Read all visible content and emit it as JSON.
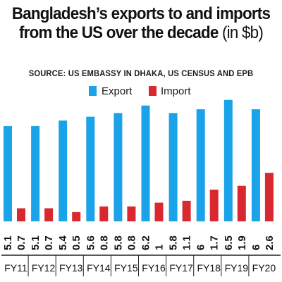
{
  "title_line1": "Bangladesh’s exports to and imports",
  "title_line2_main": "from the US over the decade",
  "title_line2_unit": " (in $b)",
  "source": "SOURCE: US EMBASSY IN DHAKA, US CENSUS AND EPB",
  "colors": {
    "export": "#1aa3e8",
    "import": "#d9282f",
    "axis": "#222222"
  },
  "chart_data": {
    "type": "bar",
    "categories": [
      "FY11",
      "FY12",
      "FY13",
      "FY14",
      "FY15",
      "FY16",
      "FY17",
      "FY18",
      "FY19",
      "FY20"
    ],
    "series": [
      {
        "name": "Export",
        "values": [
          5.1,
          5.1,
          5.4,
          5.6,
          5.8,
          6.2,
          5.8,
          6,
          6.5,
          6
        ]
      },
      {
        "name": "Import",
        "values": [
          0.7,
          0.7,
          0.5,
          0.8,
          0.8,
          1,
          1.1,
          1.7,
          1.9,
          2.6
        ]
      }
    ],
    "labels": [
      [
        "5.1",
        "0.7"
      ],
      [
        "5.1",
        "0.7"
      ],
      [
        "5.4",
        "0.5"
      ],
      [
        "5.6",
        "0.8"
      ],
      [
        "5.8",
        "0.8"
      ],
      [
        "6.2",
        "1"
      ],
      [
        "5.8",
        "1.1"
      ],
      [
        "6",
        "1.7"
      ],
      [
        "6.5",
        "1.9"
      ],
      [
        "6",
        "2.6"
      ]
    ],
    "ylim": [
      0,
      7
    ],
    "legend": "top",
    "grid": false
  }
}
